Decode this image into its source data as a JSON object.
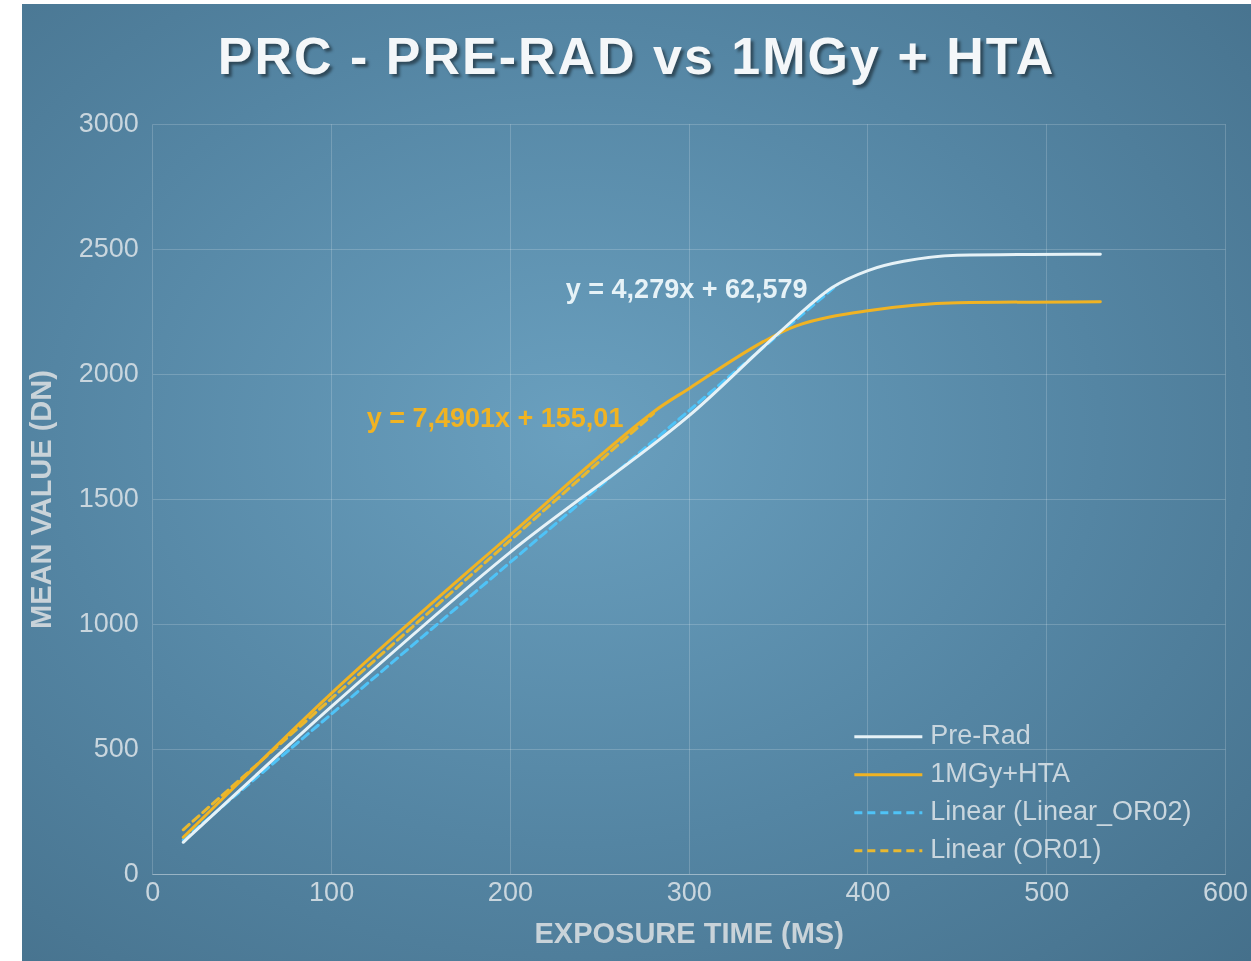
{
  "chart_data": {
    "type": "line",
    "title": "PRC - PRE-RAD vs 1MGy + HTA",
    "xlabel": "EXPOSURE TIME (MS)",
    "ylabel": "MEAN VALUE (DN)",
    "xlim": [
      0,
      600
    ],
    "xticks": [
      0,
      100,
      200,
      300,
      400,
      500,
      600
    ],
    "ylim": [
      0,
      3000
    ],
    "yticks": [
      0,
      500,
      1000,
      1500,
      2000,
      2500,
      3000
    ],
    "grid": true,
    "legend": "bottom right",
    "marker": "none",
    "series": [
      {
        "name": "Pre-Rad",
        "color": "#e6f2f7",
        "x": [
          17,
          100,
          200,
          300,
          350,
          380,
          400,
          420,
          450,
          530
        ],
        "values": [
          130,
          673,
          1290,
          1835,
          2165,
          2347,
          2415,
          2452,
          2476,
          2480
        ]
      },
      {
        "name": "1MGy+HTA",
        "color": "#f0b323",
        "x": [
          17,
          100,
          200,
          280,
          300,
          340,
          360,
          400,
          450,
          530
        ],
        "values": [
          150,
          726,
          1359,
          1850,
          1944,
          2125,
          2194,
          2254,
          2286,
          2290
        ]
      },
      {
        "name": "Linear (Linear_OR02)",
        "color": "#4fc3f7",
        "line_style": "dashed",
        "x": [
          17,
          383
        ],
        "values": [
          140,
          2359
        ]
      },
      {
        "name": "Linear (OR01)",
        "color": "#e8b830",
        "line_style": "dashed",
        "x": [
          17,
          280
        ],
        "values": [
          180,
          1843
        ]
      }
    ],
    "annotations": [
      "y = 4,279x + 62,579",
      "y = 7,4901x + 155,01"
    ]
  }
}
